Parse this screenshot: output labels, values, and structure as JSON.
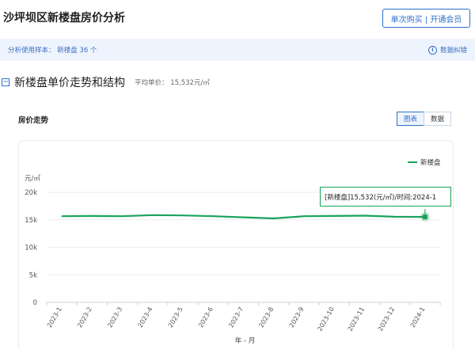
{
  "header": {
    "title": "沙坪坝区新楼盘房价分析",
    "member_button": "单次购买 | 开通会员"
  },
  "sample_bar": {
    "text": "分析使用样本：  新楼盘 36 个",
    "feedback": "数据纠错",
    "feedback_icon": "info-icon"
  },
  "section": {
    "title": "新楼盘单价走势和结构",
    "avg_price": "平均单价：  15,532元/㎡",
    "collapse_icon": "minus-square-icon"
  },
  "chart_panel": {
    "title": "房价走势",
    "toggle": {
      "chart": "图表",
      "data": "数据",
      "active": "chart"
    }
  },
  "tooltip": {
    "text": "[新楼盘]15,532(元/㎡)/时间:2024-1"
  },
  "colors": {
    "accent": "#2f6fce",
    "series_green": "#1aa25d",
    "sample_bar_bg": "#eef4fd"
  },
  "chart_data": {
    "type": "line",
    "categories": [
      "2023-1",
      "2023-2",
      "2023-3",
      "2023-4",
      "2023-5",
      "2023-6",
      "2023-7",
      "2023-8",
      "2023-9",
      "2023-10",
      "2023-11",
      "2023-12",
      "2024-1"
    ],
    "series": [
      {
        "name": "新楼盘",
        "values": [
          15650,
          15700,
          15650,
          15850,
          15800,
          15650,
          15450,
          15250,
          15650,
          15700,
          15750,
          15550,
          15532
        ]
      }
    ],
    "xlabel": "年 - 月",
    "ylabel": "元/㎡",
    "ylim": [
      0,
      20000
    ],
    "yticks": [
      0,
      5000,
      10000,
      15000,
      20000
    ],
    "ytick_labels": [
      "0",
      "5k",
      "10k",
      "15k",
      "20k"
    ],
    "grid": true,
    "legend": "top-right",
    "highlighted_index": 12
  }
}
